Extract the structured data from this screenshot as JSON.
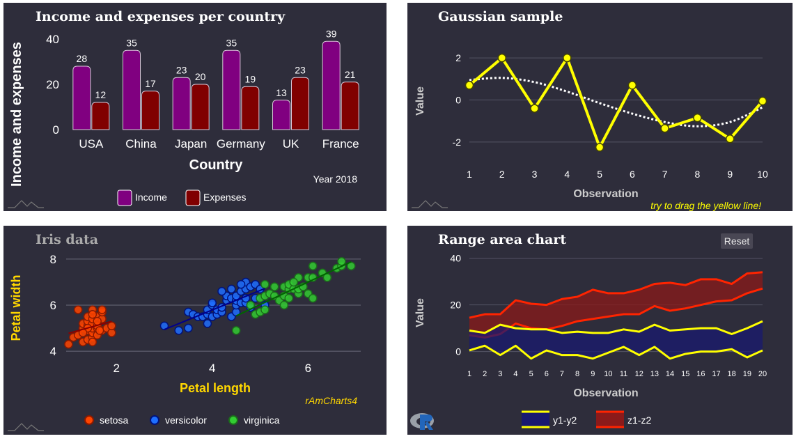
{
  "charts": {
    "income": {
      "title": "Income and expenses per country",
      "xlabel": "Country",
      "ylabel": "Income and expenses",
      "caption": "Year 2018",
      "legend": [
        "Income",
        "Expenses"
      ],
      "colors": {
        "income": "#800080",
        "expenses": "#800000",
        "title": "#ffffff"
      }
    },
    "gauss": {
      "title": "Gaussian sample",
      "xlabel": "Observation",
      "ylabel": "Value",
      "caption": "try to drag the yellow line!",
      "colors": {
        "line": "#ffff00",
        "title": "#ffffff",
        "axis": "#cccccc"
      }
    },
    "iris": {
      "title": "Iris data",
      "xlabel": "Petal length",
      "ylabel": "Petal width",
      "caption": "rAmCharts4",
      "legend": [
        "setosa",
        "versicolor",
        "virginica"
      ],
      "colors": {
        "setosa": "#ff4500",
        "versicolor": "#1e6fff",
        "virginica": "#32cd32",
        "label": "#ffd700",
        "title": "#aaaaaa"
      }
    },
    "range": {
      "title": "Range area chart",
      "reset_label": "Reset",
      "xlabel": "Observation",
      "ylabel": "Value",
      "legend": [
        "y1-y2",
        "z1-z2"
      ],
      "colors": {
        "y": "#ffff00",
        "yfill": "#191970",
        "z": "#ff2400",
        "zfill": "#8b1a1a",
        "title": "#ffffff",
        "axis": "#cccccc"
      }
    }
  },
  "chart_data": [
    {
      "type": "bar",
      "title": "Income and expenses per country",
      "xlabel": "Country",
      "ylabel": "Income and expenses",
      "categories": [
        "USA",
        "China",
        "Japan",
        "Germany",
        "UK",
        "France"
      ],
      "series": [
        {
          "name": "Income",
          "values": [
            28,
            35,
            23,
            35,
            13,
            39
          ]
        },
        {
          "name": "Expenses",
          "values": [
            12,
            17,
            20,
            19,
            23,
            21
          ]
        }
      ],
      "ylim": [
        0,
        40
      ],
      "yticks": [
        0,
        20,
        40
      ],
      "legend_position": "bottom",
      "grid": false
    },
    {
      "type": "line",
      "title": "Gaussian sample",
      "xlabel": "Observation",
      "ylabel": "Value",
      "x": [
        1,
        2,
        3,
        4,
        5,
        6,
        7,
        8,
        9,
        10
      ],
      "series": [
        {
          "values": [
            0.7,
            2.0,
            -0.4,
            2.0,
            -2.25,
            0.7,
            -1.35,
            -0.85,
            -1.85,
            -0.05
          ]
        }
      ],
      "trend": [
        0.95,
        1.05,
        0.85,
        0.4,
        -0.15,
        -0.65,
        -1.05,
        -1.25,
        -1.05,
        -0.35
      ],
      "ylim": [
        -3,
        3
      ],
      "yticks": [
        -2,
        0,
        2
      ],
      "grid": true
    },
    {
      "type": "scatter",
      "title": "Iris data",
      "xlabel": "Petal length",
      "ylabel": "Petal width",
      "xticks": [
        2,
        4,
        6
      ],
      "yticks": [
        4,
        6,
        8
      ],
      "xlim": [
        0.95,
        7.1
      ],
      "ylim": [
        3.7,
        8.3
      ],
      "legend_position": "bottom",
      "grid": true,
      "series": [
        {
          "name": "setosa",
          "points": [
            [
              1.0,
              4.3
            ],
            [
              1.1,
              4.6
            ],
            [
              1.2,
              4.7
            ],
            [
              1.3,
              4.4
            ],
            [
              1.3,
              5.0
            ],
            [
              1.3,
              5.2
            ],
            [
              1.4,
              4.5
            ],
            [
              1.4,
              4.9
            ],
            [
              1.4,
              5.1
            ],
            [
              1.4,
              5.3
            ],
            [
              1.4,
              5.5
            ],
            [
              1.5,
              4.6
            ],
            [
              1.5,
              4.8
            ],
            [
              1.5,
              5.0
            ],
            [
              1.5,
              5.2
            ],
            [
              1.5,
              5.4
            ],
            [
              1.6,
              4.7
            ],
            [
              1.6,
              5.0
            ],
            [
              1.6,
              5.1
            ],
            [
              1.6,
              5.5
            ],
            [
              1.7,
              4.9
            ],
            [
              1.7,
              5.4
            ],
            [
              1.7,
              5.7
            ],
            [
              1.8,
              5.0
            ],
            [
              1.9,
              4.8
            ],
            [
              1.9,
              5.1
            ],
            [
              1.2,
              5.8
            ],
            [
              1.5,
              5.8
            ],
            [
              1.7,
              5.8
            ],
            [
              1.5,
              5.6
            ],
            [
              1.4,
              5.0
            ],
            [
              1.6,
              5.3
            ],
            [
              1.3,
              4.8
            ],
            [
              1.5,
              4.4
            ],
            [
              1.65,
              4.9
            ]
          ]
        },
        {
          "name": "versicolor",
          "points": [
            [
              3.0,
              5.1
            ],
            [
              3.3,
              4.9
            ],
            [
              3.5,
              5.0
            ],
            [
              3.5,
              5.7
            ],
            [
              3.6,
              5.6
            ],
            [
              3.7,
              5.5
            ],
            [
              3.8,
              5.5
            ],
            [
              3.9,
              5.2
            ],
            [
              3.9,
              5.6
            ],
            [
              3.9,
              5.8
            ],
            [
              4.0,
              5.5
            ],
            [
              4.0,
              6.0
            ],
            [
              4.0,
              6.1
            ],
            [
              4.1,
              5.6
            ],
            [
              4.1,
              5.8
            ],
            [
              4.2,
              5.7
            ],
            [
              4.2,
              5.9
            ],
            [
              4.3,
              6.2
            ],
            [
              4.3,
              6.4
            ],
            [
              4.4,
              5.5
            ],
            [
              4.4,
              6.3
            ],
            [
              4.4,
              6.7
            ],
            [
              4.5,
              5.7
            ],
            [
              4.5,
              6.0
            ],
            [
              4.5,
              6.2
            ],
            [
              4.5,
              6.4
            ],
            [
              4.6,
              6.1
            ],
            [
              4.6,
              6.6
            ],
            [
              4.7,
              6.1
            ],
            [
              4.7,
              6.3
            ],
            [
              4.7,
              6.7
            ],
            [
              4.7,
              7.0
            ],
            [
              4.8,
              5.9
            ],
            [
              4.8,
              6.8
            ],
            [
              4.9,
              6.3
            ],
            [
              4.9,
              6.9
            ],
            [
              5.0,
              6.7
            ],
            [
              5.1,
              6.0
            ],
            [
              4.2,
              6.6
            ],
            [
              4.6,
              6.9
            ]
          ]
        },
        {
          "name": "virginica",
          "points": [
            [
              4.5,
              4.9
            ],
            [
              4.8,
              6.0
            ],
            [
              4.9,
              5.6
            ],
            [
              5.0,
              5.7
            ],
            [
              5.0,
              6.3
            ],
            [
              5.1,
              5.8
            ],
            [
              5.1,
              6.4
            ],
            [
              5.1,
              6.9
            ],
            [
              5.2,
              6.5
            ],
            [
              5.3,
              6.4
            ],
            [
              5.4,
              6.2
            ],
            [
              5.5,
              6.4
            ],
            [
              5.5,
              6.8
            ],
            [
              5.6,
              6.3
            ],
            [
              5.6,
              6.7
            ],
            [
              5.6,
              6.9
            ],
            [
              5.7,
              6.7
            ],
            [
              5.8,
              6.5
            ],
            [
              5.8,
              6.7
            ],
            [
              5.8,
              7.2
            ],
            [
              5.9,
              6.8
            ],
            [
              6.0,
              6.5
            ],
            [
              6.0,
              7.2
            ],
            [
              6.1,
              6.3
            ],
            [
              6.1,
              7.2
            ],
            [
              6.1,
              7.7
            ],
            [
              6.3,
              7.4
            ],
            [
              6.4,
              7.2
            ],
            [
              6.6,
              7.6
            ],
            [
              6.7,
              7.7
            ],
            [
              6.7,
              7.9
            ],
            [
              6.9,
              7.7
            ],
            [
              5.5,
              6.0
            ],
            [
              5.3,
              6.8
            ],
            [
              5.7,
              7.0
            ]
          ]
        }
      ]
    },
    {
      "type": "area",
      "title": "Range area chart",
      "xlabel": "Observation",
      "ylabel": "Value",
      "x": [
        1,
        2,
        3,
        4,
        5,
        6,
        7,
        8,
        9,
        10,
        11,
        12,
        13,
        14,
        15,
        16,
        17,
        18,
        19,
        20
      ],
      "ylim": [
        -4,
        42
      ],
      "yticks": [
        0,
        20,
        40
      ],
      "grid": true,
      "legend_position": "bottom",
      "series": [
        {
          "name": "y1-y2",
          "upper": [
            9.0,
            8.0,
            11.5,
            10.0,
            9.5,
            9.5,
            8.0,
            8.5,
            8.0,
            8.0,
            9.5,
            8.5,
            11.5,
            9.0,
            9.5,
            10.0,
            10.0,
            7.5,
            10.0,
            13.0
          ],
          "lower": [
            0.5,
            2.5,
            -1.5,
            2.5,
            -3.0,
            0.5,
            -1.5,
            -1.5,
            -3.0,
            -0.5,
            2.0,
            -1.5,
            2.0,
            -3.0,
            -1.0,
            0.0,
            0.0,
            1.0,
            -2.5,
            0.5
          ]
        },
        {
          "name": "z1-z2",
          "upper": [
            14.5,
            16.0,
            16.0,
            22.0,
            20.5,
            20.0,
            22.5,
            23.5,
            26.5,
            25.0,
            25.0,
            26.5,
            29.0,
            29.5,
            28.5,
            31.0,
            31.0,
            29.0,
            33.5,
            34.0
          ],
          "lower": [
            7.0,
            6.0,
            7.5,
            12.0,
            10.0,
            9.5,
            11.0,
            13.0,
            14.0,
            15.0,
            16.0,
            16.0,
            19.5,
            17.5,
            18.5,
            20.0,
            21.5,
            22.0,
            25.0,
            27.0
          ]
        }
      ]
    }
  ]
}
